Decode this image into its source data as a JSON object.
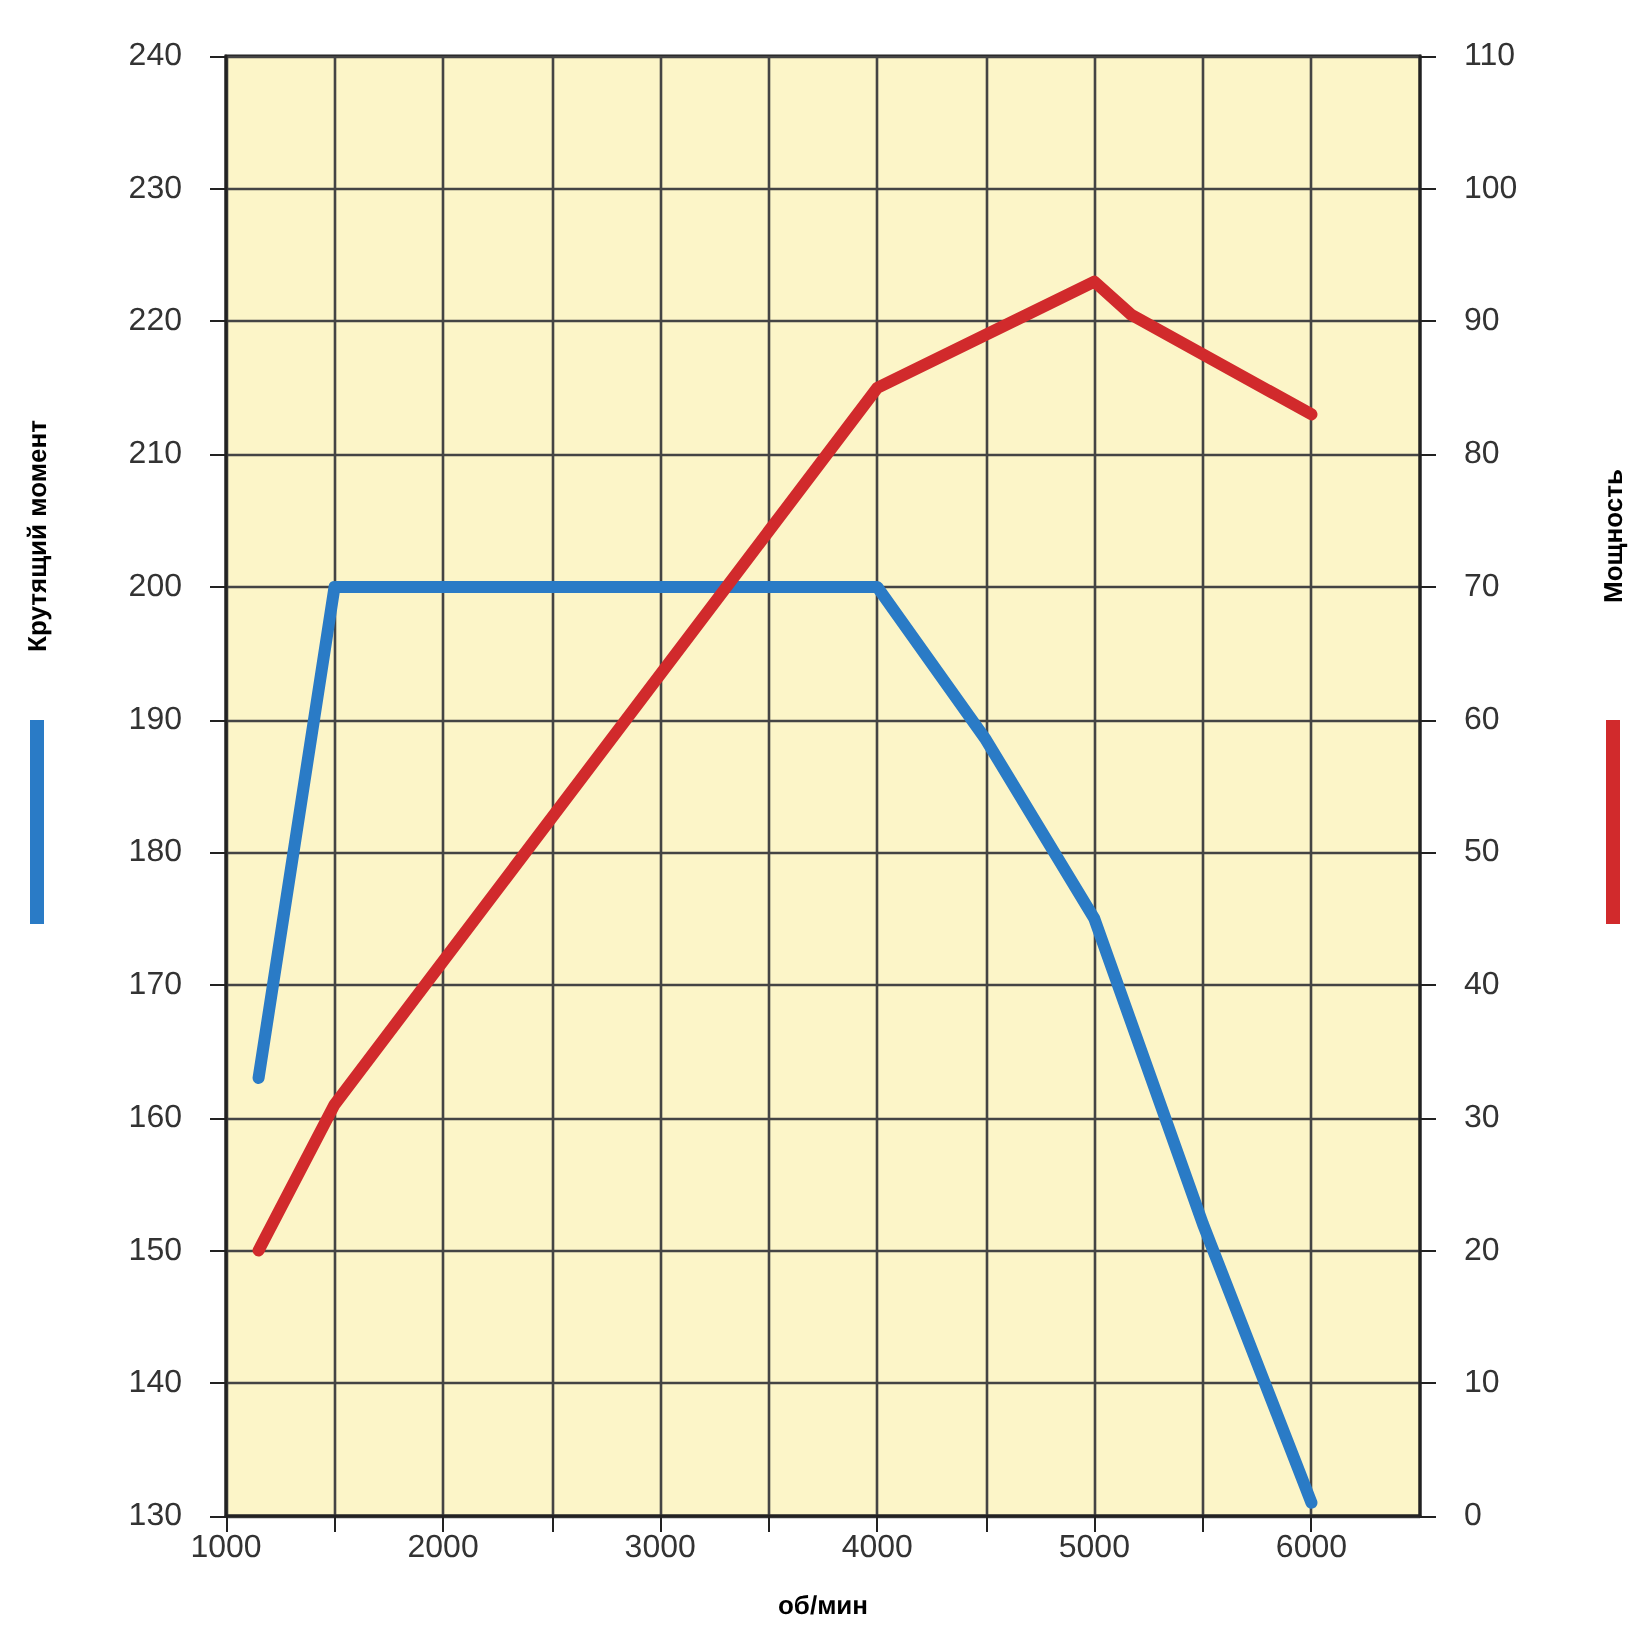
{
  "chart_data": {
    "type": "line",
    "xlabel": "об/мин",
    "ylabel": "Крутящий момент",
    "y2label": "Мощность",
    "series": [
      {
        "color": "#2a7bc6",
        "x": [
          1150,
          1500,
          4000,
          4500,
          5000,
          5500,
          6000
        ],
        "values": [
          163,
          200,
          200,
          188.5,
          175,
          152,
          131
        ]
      },
      {
        "color": "#d12a2c",
        "axis": "y2",
        "x": [
          1150,
          1500,
          4000,
          5000,
          5170,
          6000
        ],
        "values": [
          20,
          31,
          85,
          93,
          90.5,
          83
        ]
      }
    ],
    "xlim": [
      1000,
      6500
    ],
    "xticks": [
      1000,
      {
        "value": 1500,
        "label": null
      },
      2000,
      {
        "value": 2500,
        "label": null
      },
      3000,
      {
        "value": 3500,
        "label": null
      },
      4000,
      {
        "value": 4500,
        "label": null
      },
      5000,
      {
        "value": 5500,
        "label": null
      },
      6000
    ],
    "ylim": [
      130,
      240
    ],
    "yticks": [
      130,
      140,
      150,
      160,
      170,
      180,
      190,
      200,
      210,
      220,
      230,
      240
    ],
    "y2lim": [
      0,
      110
    ],
    "y2ticks": [
      0,
      10,
      20,
      30,
      40,
      50,
      60,
      70,
      80,
      90,
      100,
      110
    ],
    "grid": true,
    "marker": "none",
    "line_style": "solid"
  }
}
